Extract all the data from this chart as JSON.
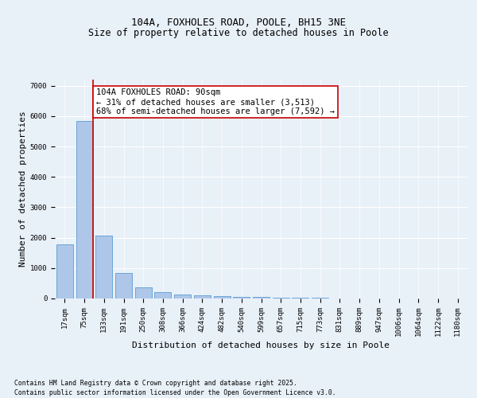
{
  "title_line1": "104A, FOXHOLES ROAD, POOLE, BH15 3NE",
  "title_line2": "Size of property relative to detached houses in Poole",
  "xlabel": "Distribution of detached houses by size in Poole",
  "ylabel": "Number of detached properties",
  "categories": [
    "17sqm",
    "75sqm",
    "133sqm",
    "191sqm",
    "250sqm",
    "308sqm",
    "366sqm",
    "424sqm",
    "482sqm",
    "540sqm",
    "599sqm",
    "657sqm",
    "715sqm",
    "773sqm",
    "831sqm",
    "889sqm",
    "947sqm",
    "1006sqm",
    "1064sqm",
    "1122sqm",
    "1180sqm"
  ],
  "values": [
    1780,
    5830,
    2080,
    830,
    370,
    210,
    120,
    95,
    75,
    55,
    45,
    30,
    20,
    15,
    10,
    8,
    6,
    5,
    4,
    3,
    2
  ],
  "bar_color": "#aec6e8",
  "bar_edge_color": "#5b9bd5",
  "highlight_line_color": "#cc0000",
  "annotation_text": "104A FOXHOLES ROAD: 90sqm\n← 31% of detached houses are smaller (3,513)\n68% of semi-detached houses are larger (7,592) →",
  "annotation_box_color": "#cc0000",
  "annotation_fill": "#ffffff",
  "ylim": [
    0,
    7200
  ],
  "yticks": [
    0,
    1000,
    2000,
    3000,
    4000,
    5000,
    6000,
    7000
  ],
  "bg_color": "#e8f0f8",
  "plot_bg_color": "#e8f0f8",
  "footer_line1": "Contains HM Land Registry data © Crown copyright and database right 2025.",
  "footer_line2": "Contains public sector information licensed under the Open Government Licence v3.0.",
  "grid_color": "#ffffff",
  "title_fontsize": 9,
  "subtitle_fontsize": 8.5,
  "tick_fontsize": 6.5,
  "label_fontsize": 8,
  "annotation_fontsize": 7.5,
  "footer_fontsize": 5.8
}
